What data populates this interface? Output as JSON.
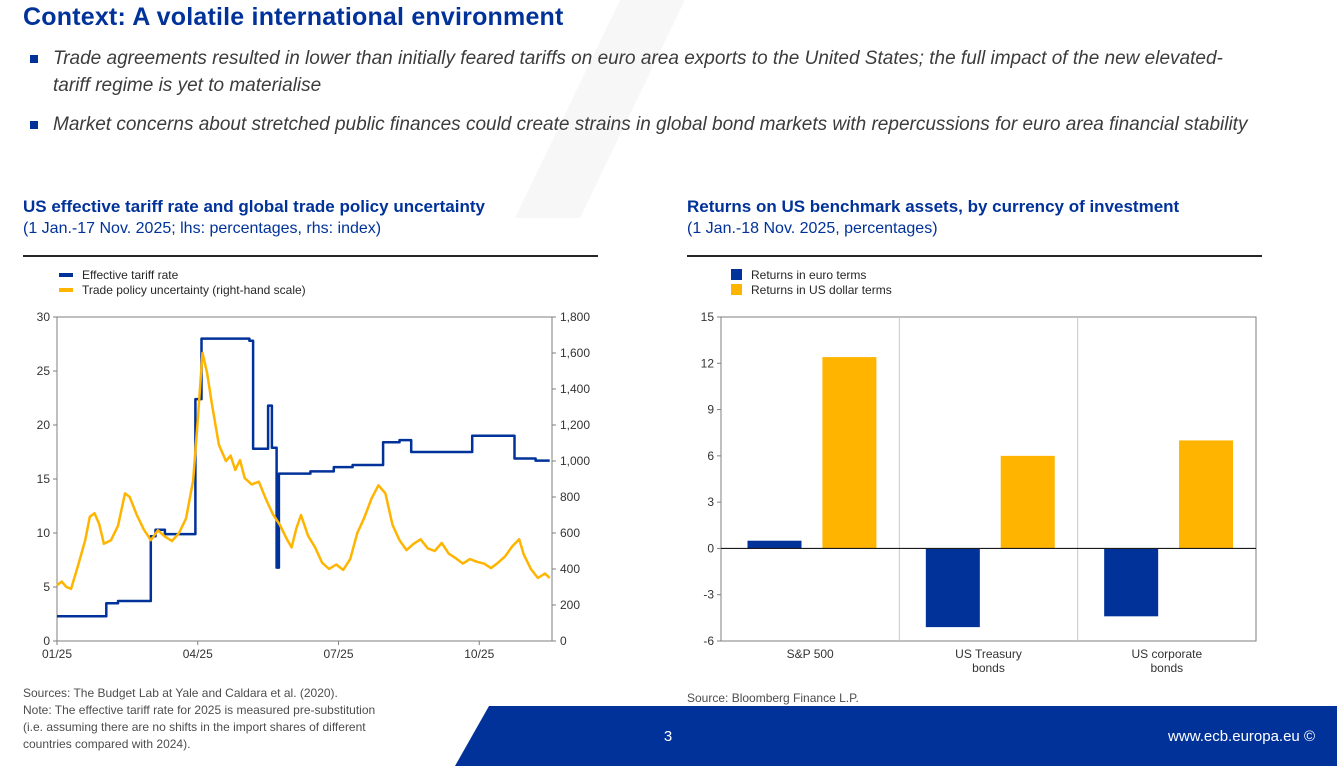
{
  "page": {
    "title": "Context: A volatile international environment",
    "bullets": [
      "Trade agreements resulted in lower than initially feared tariffs on euro area exports to the United States; the full impact of the new elevated-tariff regime is yet to materialise",
      "Market concerns about stretched public finances could create strains in global bond markets with repercussions for euro area financial stability"
    ],
    "page_number": "3",
    "footer_url": "www.ecb.europa.eu ©"
  },
  "colors": {
    "ecb_blue": "#003299",
    "ecb_yellow": "#FFB400",
    "title_blue": "#003299"
  },
  "left_chart": {
    "title": "US effective tariff rate and global trade policy uncertainty",
    "subtitle": "(1 Jan.-17 Nov. 2025; lhs: percentages, rhs: index)",
    "legend": [
      "Effective tariff rate",
      "Trade policy uncertainty (right-hand scale)"
    ],
    "source_lines": [
      "Sources: The Budget Lab at Yale and Caldara et al. (2020).",
      "Note: The effective tariff rate for 2025 is measured pre-substitution",
      "(i.e. assuming there are no shifts in the import shares of different",
      "countries compared with 2024)."
    ]
  },
  "right_chart": {
    "title": "Returns on US benchmark assets, by currency of investment",
    "subtitle": "(1 Jan.-18 Nov. 2025, percentages)",
    "legend": [
      "Returns in euro terms",
      "Returns in US dollar terms"
    ],
    "source": "Source: Bloomberg Finance L.P."
  },
  "chart_data": [
    {
      "type": "line",
      "title": "US effective tariff rate and global trade policy uncertainty",
      "x_unit": "months since 1 Jan 2025",
      "x_min": 0,
      "x_max": 10.55,
      "x_ticks": [
        {
          "x": 0,
          "label": "01/25"
        },
        {
          "x": 3,
          "label": "04/25"
        },
        {
          "x": 6,
          "label": "07/25"
        },
        {
          "x": 9,
          "label": "10/25"
        }
      ],
      "left_axis": {
        "min": 0,
        "max": 30,
        "ticks": [
          0,
          5,
          10,
          15,
          20,
          25,
          30
        ],
        "label": "percentages"
      },
      "right_axis": {
        "min": 0,
        "max": 1800,
        "ticks": [
          "0",
          "200",
          "400",
          "600",
          "800",
          "1,000",
          "1,200",
          "1,400",
          "1,600",
          "1,800"
        ],
        "label": "index"
      },
      "grid": false,
      "legend_position": "top-left",
      "series": [
        {
          "name": "Effective tariff rate",
          "axis": "left",
          "color": "#003299",
          "points": [
            [
              0.0,
              2.3
            ],
            [
              1.05,
              2.3
            ],
            [
              1.05,
              3.5
            ],
            [
              1.3,
              3.5
            ],
            [
              1.3,
              3.7
            ],
            [
              2.0,
              3.7
            ],
            [
              2.0,
              9.7
            ],
            [
              2.1,
              9.7
            ],
            [
              2.1,
              10.3
            ],
            [
              2.3,
              10.3
            ],
            [
              2.3,
              9.9
            ],
            [
              2.95,
              9.9
            ],
            [
              2.95,
              22.4
            ],
            [
              3.08,
              22.4
            ],
            [
              3.08,
              28.0
            ],
            [
              4.1,
              28.0
            ],
            [
              4.1,
              27.8
            ],
            [
              4.18,
              27.8
            ],
            [
              4.18,
              17.8
            ],
            [
              4.5,
              17.8
            ],
            [
              4.5,
              21.8
            ],
            [
              4.58,
              21.8
            ],
            [
              4.58,
              17.9
            ],
            [
              4.68,
              17.9
            ],
            [
              4.68,
              6.8
            ],
            [
              4.73,
              6.8
            ],
            [
              4.73,
              15.5
            ],
            [
              5.4,
              15.5
            ],
            [
              5.4,
              15.7
            ],
            [
              5.9,
              15.7
            ],
            [
              5.9,
              16.1
            ],
            [
              6.3,
              16.1
            ],
            [
              6.3,
              16.3
            ],
            [
              6.95,
              16.3
            ],
            [
              6.95,
              18.4
            ],
            [
              7.3,
              18.4
            ],
            [
              7.3,
              18.6
            ],
            [
              7.55,
              18.6
            ],
            [
              7.55,
              17.5
            ],
            [
              8.85,
              17.5
            ],
            [
              8.85,
              19.0
            ],
            [
              9.75,
              19.0
            ],
            [
              9.75,
              16.9
            ],
            [
              10.2,
              16.9
            ],
            [
              10.2,
              16.7
            ],
            [
              10.5,
              16.7
            ]
          ]
        },
        {
          "name": "Trade policy uncertainty (right-hand scale)",
          "axis": "right",
          "color": "#FFB400",
          "points": [
            [
              0.0,
              310
            ],
            [
              0.1,
              330
            ],
            [
              0.2,
              300
            ],
            [
              0.3,
              290
            ],
            [
              0.45,
              420
            ],
            [
              0.6,
              560
            ],
            [
              0.7,
              690
            ],
            [
              0.8,
              710
            ],
            [
              0.9,
              650
            ],
            [
              1.0,
              540
            ],
            [
              1.15,
              560
            ],
            [
              1.3,
              640
            ],
            [
              1.45,
              820
            ],
            [
              1.55,
              800
            ],
            [
              1.7,
              700
            ],
            [
              1.85,
              620
            ],
            [
              2.0,
              560
            ],
            [
              2.15,
              615
            ],
            [
              2.3,
              580
            ],
            [
              2.45,
              555
            ],
            [
              2.6,
              600
            ],
            [
              2.75,
              680
            ],
            [
              2.9,
              890
            ],
            [
              3.0,
              1230
            ],
            [
              3.1,
              1600
            ],
            [
              3.2,
              1490
            ],
            [
              3.3,
              1320
            ],
            [
              3.45,
              1090
            ],
            [
              3.6,
              1000
            ],
            [
              3.7,
              1030
            ],
            [
              3.8,
              950
            ],
            [
              3.9,
              1005
            ],
            [
              4.0,
              905
            ],
            [
              4.15,
              870
            ],
            [
              4.3,
              885
            ],
            [
              4.45,
              790
            ],
            [
              4.6,
              705
            ],
            [
              4.75,
              645
            ],
            [
              4.9,
              565
            ],
            [
              5.0,
              520
            ],
            [
              5.1,
              625
            ],
            [
              5.2,
              700
            ],
            [
              5.35,
              585
            ],
            [
              5.5,
              520
            ],
            [
              5.65,
              435
            ],
            [
              5.8,
              400
            ],
            [
              5.95,
              425
            ],
            [
              6.1,
              395
            ],
            [
              6.25,
              455
            ],
            [
              6.4,
              600
            ],
            [
              6.55,
              685
            ],
            [
              6.7,
              790
            ],
            [
              6.85,
              865
            ],
            [
              7.0,
              820
            ],
            [
              7.15,
              645
            ],
            [
              7.3,
              560
            ],
            [
              7.45,
              505
            ],
            [
              7.6,
              540
            ],
            [
              7.75,
              565
            ],
            [
              7.9,
              515
            ],
            [
              8.05,
              500
            ],
            [
              8.2,
              545
            ],
            [
              8.35,
              485
            ],
            [
              8.5,
              460
            ],
            [
              8.65,
              430
            ],
            [
              8.8,
              455
            ],
            [
              8.95,
              440
            ],
            [
              9.1,
              430
            ],
            [
              9.25,
              405
            ],
            [
              9.4,
              435
            ],
            [
              9.55,
              470
            ],
            [
              9.7,
              525
            ],
            [
              9.85,
              565
            ],
            [
              9.95,
              480
            ],
            [
              10.1,
              400
            ],
            [
              10.25,
              350
            ],
            [
              10.4,
              375
            ],
            [
              10.5,
              350
            ]
          ]
        }
      ]
    },
    {
      "type": "bar",
      "title": "Returns on US benchmark assets, by currency of investment",
      "categories": [
        "S&P 500",
        "US Treasury bonds",
        "US corporate bonds"
      ],
      "category_lines": [
        [
          "S&P 500"
        ],
        [
          "US Treasury",
          "bonds"
        ],
        [
          "US corporate",
          "bonds"
        ]
      ],
      "ylim": [
        -6,
        15
      ],
      "y_ticks": [
        -6,
        -3,
        0,
        3,
        6,
        9,
        12,
        15
      ],
      "grid": false,
      "legend_position": "top-left",
      "series": [
        {
          "name": "Returns in euro terms",
          "color": "#003299",
          "values": [
            0.5,
            -5.1,
            -4.4
          ]
        },
        {
          "name": "Returns in US dollar terms",
          "color": "#FFB400",
          "values": [
            12.4,
            6.0,
            7.0
          ]
        }
      ]
    }
  ]
}
